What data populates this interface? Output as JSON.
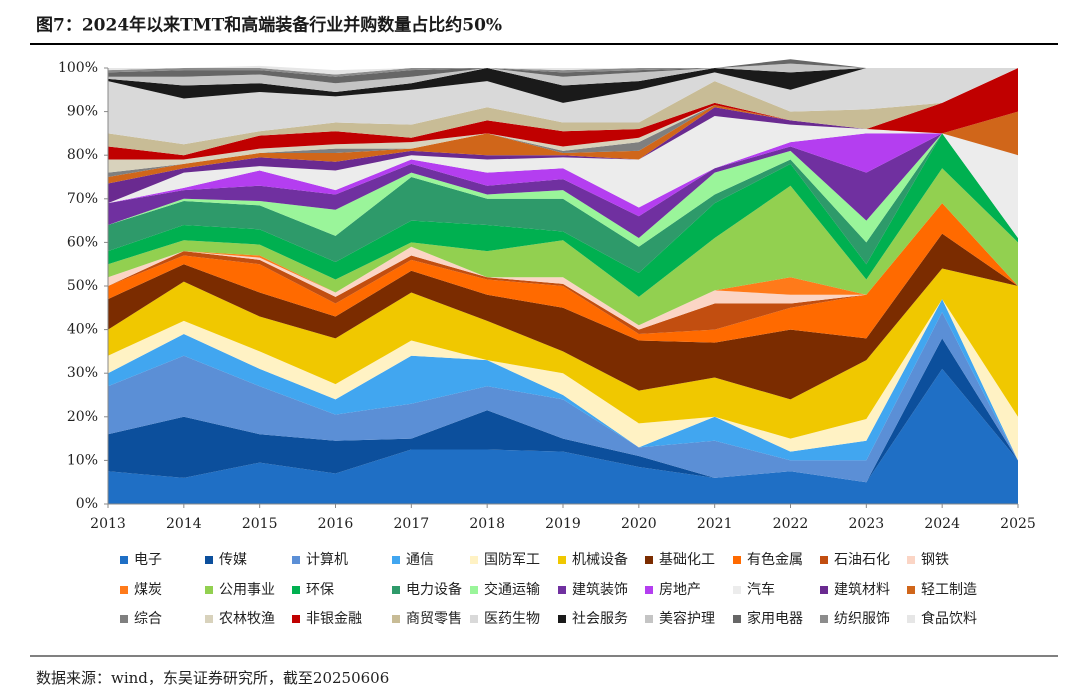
{
  "chart_data": {
    "type": "stacked_area",
    "title": "图7：2024年以来TMT和高端装备行业并购数量占比约50%",
    "source": "数据来源：wind，东吴证券研究所，截至20250606",
    "categories": [
      "2013",
      "2014",
      "2015",
      "2016",
      "2017",
      "2018",
      "2019",
      "2020",
      "2021",
      "2022",
      "2023",
      "2024",
      "2025"
    ],
    "ylim": [
      0,
      100
    ],
    "yticks": [
      {
        "value": 0,
        "label": "0%"
      },
      {
        "value": 10,
        "label": "10%"
      },
      {
        "value": 20,
        "label": "20%"
      },
      {
        "value": 30,
        "label": "30%"
      },
      {
        "value": 40,
        "label": "40%"
      },
      {
        "value": 50,
        "label": "50%"
      },
      {
        "value": 60,
        "label": "60%"
      },
      {
        "value": 70,
        "label": "70%"
      },
      {
        "value": 80,
        "label": "80%"
      },
      {
        "value": 90,
        "label": "90%"
      },
      {
        "value": 100,
        "label": "100%"
      }
    ],
    "series": [
      {
        "name": "电子",
        "color": "#1f6fc5",
        "values": [
          7.5,
          6,
          9.5,
          7,
          12.5,
          12.5,
          12,
          8.5,
          6,
          7.5,
          5,
          31,
          10
        ]
      },
      {
        "name": "传媒",
        "color": "#0c4f9c",
        "values": [
          8.5,
          14,
          6.5,
          7.5,
          2.5,
          9,
          3,
          2.5,
          0,
          0,
          0,
          7,
          0
        ]
      },
      {
        "name": "计算机",
        "color": "#5b8fd6",
        "values": [
          11,
          14,
          11,
          6,
          8,
          5.5,
          9,
          2,
          8.5,
          2.5,
          5,
          6,
          0
        ]
      },
      {
        "name": "通信",
        "color": "#41a6f0",
        "values": [
          3,
          5,
          4,
          3.5,
          11,
          6,
          1,
          0,
          5.5,
          2,
          4.5,
          3,
          0
        ]
      },
      {
        "name": "国防军工",
        "color": "#fff2c4",
        "values": [
          4,
          3,
          4,
          3.5,
          3.5,
          0,
          5,
          5.5,
          0,
          3,
          5,
          0,
          10
        ]
      },
      {
        "name": "机械设备",
        "color": "#f0c800",
        "values": [
          6,
          9,
          8,
          10.5,
          11,
          9,
          5,
          7.5,
          9,
          9,
          13.5,
          7,
          30
        ]
      },
      {
        "name": "基础化工",
        "color": "#7b2c00",
        "values": [
          7,
          4,
          5.5,
          5,
          5,
          6,
          10,
          11.5,
          8,
          16,
          5,
          8,
          0
        ]
      },
      {
        "name": "有色金属",
        "color": "#ff6a00",
        "values": [
          3,
          2,
          6.5,
          3,
          2.5,
          3.5,
          5,
          1.5,
          3,
          5,
          10,
          7,
          0
        ]
      },
      {
        "name": "石油石化",
        "color": "#c24e10",
        "values": [
          0,
          1,
          1,
          1.5,
          1,
          0.5,
          0.5,
          1,
          6,
          1,
          0,
          0,
          0
        ]
      },
      {
        "name": "钢铁",
        "color": "#fbd5c5",
        "values": [
          2,
          0,
          0.5,
          1,
          2,
          0,
          1.5,
          1,
          3,
          2,
          0,
          0,
          0
        ]
      },
      {
        "name": "煤炭",
        "color": "#ff7a1a",
        "values": [
          0,
          0,
          0.5,
          0,
          0,
          0,
          0,
          0,
          0,
          4,
          0,
          0,
          0
        ]
      },
      {
        "name": "公用事业",
        "color": "#92d050",
        "values": [
          3,
          2.5,
          2.5,
          3,
          1,
          6,
          8.5,
          6.5,
          12,
          21,
          3.5,
          8,
          10
        ]
      },
      {
        "name": "环保",
        "color": "#00b050",
        "values": [
          3,
          3.5,
          3.5,
          4,
          5,
          6,
          2,
          5.5,
          8,
          5,
          3.5,
          8,
          1
        ]
      },
      {
        "name": "电力设备",
        "color": "#2e9a6a",
        "values": [
          6,
          5.5,
          5.5,
          6,
          10,
          6,
          7.5,
          6,
          2,
          1,
          5,
          0,
          0
        ]
      },
      {
        "name": "交通运输",
        "color": "#9af59a",
        "values": [
          0,
          0.5,
          1,
          6,
          1,
          1,
          2,
          2,
          5,
          2,
          5,
          0,
          0
        ]
      },
      {
        "name": "建筑装饰",
        "color": "#7030a0",
        "values": [
          5,
          2,
          3.5,
          3.5,
          2,
          2,
          2.5,
          5,
          1,
          1,
          11,
          0,
          0
        ]
      },
      {
        "name": "房地产",
        "color": "#b43ef0",
        "values": [
          0,
          0.5,
          3.5,
          1,
          1,
          3,
          2.5,
          2,
          0,
          1,
          9,
          0,
          0
        ]
      },
      {
        "name": "汽车",
        "color": "#ececec",
        "values": [
          0,
          3.5,
          1,
          4.5,
          1,
          3,
          2.5,
          11,
          12,
          4,
          1,
          0,
          19
        ]
      },
      {
        "name": "建筑材料",
        "color": "#6a2a90",
        "values": [
          4.5,
          1,
          2,
          2,
          1,
          1,
          0.5,
          0,
          2,
          1,
          0,
          0,
          0
        ]
      },
      {
        "name": "轻工制造",
        "color": "#d0661a",
        "values": [
          1.5,
          1,
          1,
          2,
          0.5,
          5,
          0.5,
          2,
          0.5,
          0,
          0,
          0,
          10
        ]
      },
      {
        "name": "综合",
        "color": "#7f7f7f",
        "values": [
          1,
          0,
          0,
          1,
          0,
          0,
          0.5,
          2,
          0,
          0,
          0,
          0,
          0
        ]
      },
      {
        "name": "农林牧渔",
        "color": "#d8d2bc",
        "values": [
          3,
          1,
          1,
          1,
          1.5,
          0,
          1,
          1,
          0,
          0,
          0,
          0,
          0
        ]
      },
      {
        "name": "非银金融",
        "color": "#c00000",
        "values": [
          3,
          1,
          3,
          3,
          1,
          3,
          3.5,
          2,
          0.5,
          0,
          0,
          7,
          10
        ]
      },
      {
        "name": "商贸零售",
        "color": "#c8bc96",
        "values": [
          3,
          2.5,
          1,
          2,
          3,
          3,
          2,
          1.5,
          5,
          2,
          4.5,
          0,
          0
        ]
      },
      {
        "name": "医药生物",
        "color": "#d9d9d9",
        "values": [
          12,
          10.5,
          9,
          6,
          8,
          6,
          4.5,
          7.5,
          2,
          5,
          9.5,
          8,
          0
        ]
      },
      {
        "name": "社会服务",
        "color": "#1a1a1a",
        "values": [
          0.5,
          3,
          2,
          1,
          1.5,
          3,
          4,
          2,
          1,
          4,
          0,
          0,
          0
        ]
      },
      {
        "name": "美容护理",
        "color": "#c4c4c4",
        "values": [
          0.5,
          2,
          2,
          2,
          1.5,
          0,
          2,
          2,
          0,
          2,
          0,
          0,
          0
        ]
      },
      {
        "name": "家用电器",
        "color": "#666666",
        "values": [
          1,
          1.5,
          1,
          1.5,
          1.5,
          0,
          1,
          0.5,
          0,
          1,
          0,
          0,
          0
        ]
      },
      {
        "name": "纺织服饰",
        "color": "#8c8c8c",
        "values": [
          0.5,
          0.5,
          0.5,
          0.5,
          0.5,
          0,
          0.5,
          0.5,
          0,
          0,
          0,
          0,
          0
        ]
      },
      {
        "name": "食品饮料",
        "color": "#e6e6e6",
        "values": [
          0.5,
          0,
          0.5,
          1,
          0,
          0,
          0.5,
          0,
          0,
          0,
          0,
          0,
          0
        ]
      }
    ]
  }
}
